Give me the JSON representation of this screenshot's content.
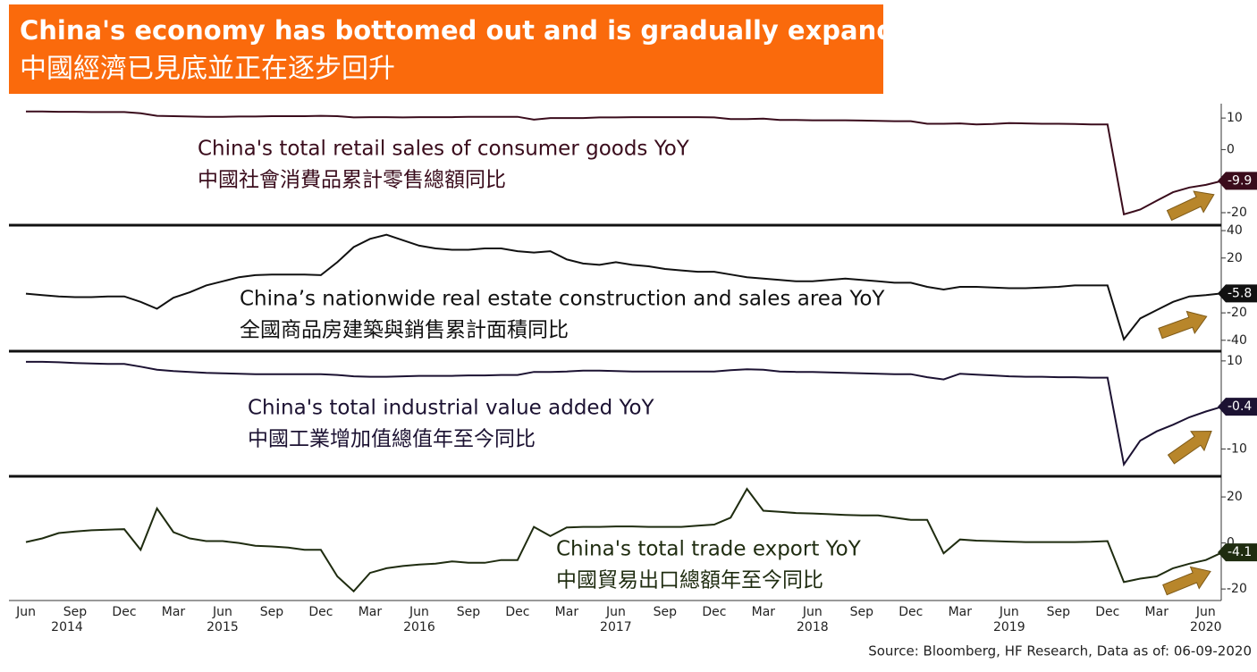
{
  "header": {
    "title": "China's economy has bottomed out and is gradually expanding",
    "subtitle": "中國經濟已見底並正在逐步回升"
  },
  "x_axis": {
    "categories": [
      "Jun",
      null,
      null,
      "Sep",
      null,
      null,
      "Dec",
      null,
      null,
      "Mar",
      null,
      null,
      "Jun",
      null,
      null,
      "Sep",
      null,
      null,
      "Dec",
      null,
      null,
      "Mar",
      null,
      null,
      "Jun",
      null,
      null,
      "Sep",
      null,
      null,
      "Dec",
      null,
      null,
      "Mar",
      null,
      null,
      "Jun",
      null,
      null,
      "Sep",
      null,
      null,
      "Dec",
      null,
      null,
      "Mar",
      null,
      null,
      "Jun",
      null,
      null,
      "Sep",
      null,
      null,
      "Dec",
      null,
      null,
      "Mar",
      null,
      null,
      "Jun",
      null,
      null,
      "Sep",
      null,
      null,
      "Dec",
      null,
      null,
      "Mar",
      null,
      null,
      "Jun",
      null
    ],
    "years": [
      "2014",
      null,
      null,
      null,
      null,
      null,
      null,
      null,
      null,
      null,
      null,
      null,
      "2015",
      null,
      null,
      null,
      null,
      null,
      null,
      null,
      null,
      null,
      null,
      null,
      "2016",
      null,
      null,
      null,
      null,
      null,
      null,
      null,
      null,
      null,
      null,
      null,
      "2017",
      null,
      null,
      null,
      null,
      null,
      null,
      null,
      null,
      null,
      null,
      null,
      "2018",
      null,
      null,
      null,
      null,
      null,
      null,
      null,
      null,
      null,
      null,
      null,
      "2019",
      null,
      null,
      null,
      null,
      null,
      null,
      null,
      null,
      null,
      null,
      null,
      "2020",
      null
    ]
  },
  "chart_data": [
    {
      "type": "line",
      "title": "China's total retail sales of consumer goods YoY",
      "subtitle": "中國社會消費品累計零售總額同比",
      "color": "#3a0c1c",
      "ylim": [
        -23.4,
        14
      ],
      "yticks": [
        10,
        0,
        -20
      ],
      "values": [
        12.1,
        12.1,
        12.0,
        12.0,
        11.9,
        11.9,
        11.9,
        11.5,
        10.7,
        10.6,
        10.5,
        10.4,
        10.4,
        10.5,
        10.5,
        10.6,
        10.6,
        10.6,
        10.7,
        10.6,
        10.2,
        10.3,
        10.3,
        10.2,
        10.3,
        10.3,
        10.3,
        10.4,
        10.4,
        10.4,
        10.4,
        9.5,
        10.0,
        10.0,
        10.0,
        10.2,
        10.2,
        10.3,
        10.3,
        10.3,
        10.3,
        10.3,
        10.2,
        9.7,
        9.7,
        9.8,
        9.4,
        9.4,
        9.3,
        9.3,
        9.3,
        9.2,
        9.1,
        9.0,
        9.0,
        8.2,
        8.2,
        8.3,
        8.0,
        8.1,
        8.4,
        8.3,
        8.2,
        8.2,
        8.1,
        8.0,
        8.0,
        -20.5,
        -19,
        -16.2,
        -13.5,
        -12,
        -11.2,
        -9.9
      ]
    },
    {
      "type": "line",
      "title": "China’s nationwide real estate construction and sales area YoY",
      "subtitle": "全國商品房建築與銷售累計面積同比",
      "color": "#111111",
      "ylim": [
        -46,
        42
      ],
      "yticks": [
        40,
        20,
        -20,
        -40
      ],
      "values": [
        -6,
        -7,
        -8,
        -8.5,
        -8.5,
        -8,
        -8,
        -12,
        -17,
        -9,
        -5,
        0,
        3,
        6,
        7.5,
        8,
        8,
        8,
        7.5,
        17,
        28,
        34,
        37,
        33,
        29,
        27,
        26,
        26,
        27,
        27,
        25,
        24,
        25,
        19,
        16,
        15,
        17,
        15,
        14,
        12,
        11,
        10,
        10,
        8,
        6,
        5,
        4,
        3,
        3,
        4,
        5,
        4,
        3,
        2,
        2,
        -1,
        -3,
        -1,
        -1,
        -1.5,
        -2,
        -2,
        -1.5,
        -1,
        0,
        0,
        0,
        -39.3,
        -24,
        -18,
        -12,
        -8,
        -7,
        -5.8
      ]
    },
    {
      "type": "line",
      "title": "China's total industrial value added YoY",
      "subtitle": "中國工業增加值總值年至今同比",
      "color": "#1c1232",
      "ylim": [
        -15.6,
        11.6
      ],
      "yticks": [
        10,
        -10
      ],
      "values": [
        9.8,
        9.8,
        9.7,
        9.5,
        9.4,
        9.3,
        9.3,
        8.7,
        8.0,
        7.7,
        7.5,
        7.3,
        7.2,
        7.1,
        7.0,
        7.0,
        7.0,
        7.0,
        7.0,
        6.8,
        6.5,
        6.4,
        6.4,
        6.5,
        6.6,
        6.6,
        6.6,
        6.7,
        6.7,
        6.8,
        6.8,
        7.5,
        7.5,
        7.6,
        7.8,
        7.8,
        7.7,
        7.6,
        7.6,
        7.6,
        7.6,
        7.6,
        7.6,
        7.9,
        8.1,
        8.0,
        7.6,
        7.5,
        7.5,
        7.4,
        7.3,
        7.2,
        7.1,
        7.0,
        7.0,
        6.3,
        5.8,
        7.1,
        6.9,
        6.7,
        6.5,
        6.4,
        6.4,
        6.3,
        6.3,
        6.2,
        6.2,
        -13.5,
        -8.1,
        -6,
        -4.5,
        -2.8,
        -1.5,
        -0.4
      ]
    },
    {
      "type": "line",
      "title": "China's total trade export YoY",
      "subtitle": "中國貿易出口總額年至今同比",
      "color": "#1f2c10",
      "ylim": [
        -25,
        27.8
      ],
      "yticks": [
        20,
        0,
        -20
      ],
      "values": [
        0.4,
        2,
        4.3,
        5,
        5.5,
        5.8,
        6,
        -3,
        15,
        4.7,
        2,
        0.8,
        0.8,
        0,
        -1.2,
        -1.5,
        -2,
        -3,
        -3,
        -14.5,
        -21,
        -13,
        -11,
        -10,
        -9.4,
        -9,
        -8,
        -8.6,
        -8.6,
        -7.4,
        -7.4,
        7,
        3,
        6.7,
        7,
        7,
        7.2,
        7.2,
        7,
        7,
        7,
        7.5,
        8,
        11,
        23.5,
        14,
        13.5,
        13,
        12.8,
        12.5,
        12.2,
        12,
        12,
        11,
        10,
        10,
        -4.5,
        1.5,
        1,
        0.8,
        0.6,
        0.4,
        0.4,
        0.4,
        0.4,
        0.5,
        0.8,
        -17,
        -15.5,
        -14.5,
        -11,
        -9,
        -7.4,
        -4.1
      ]
    }
  ],
  "source": "Source: Bloomberg, HF Research, Data as of: 06-09-2020"
}
